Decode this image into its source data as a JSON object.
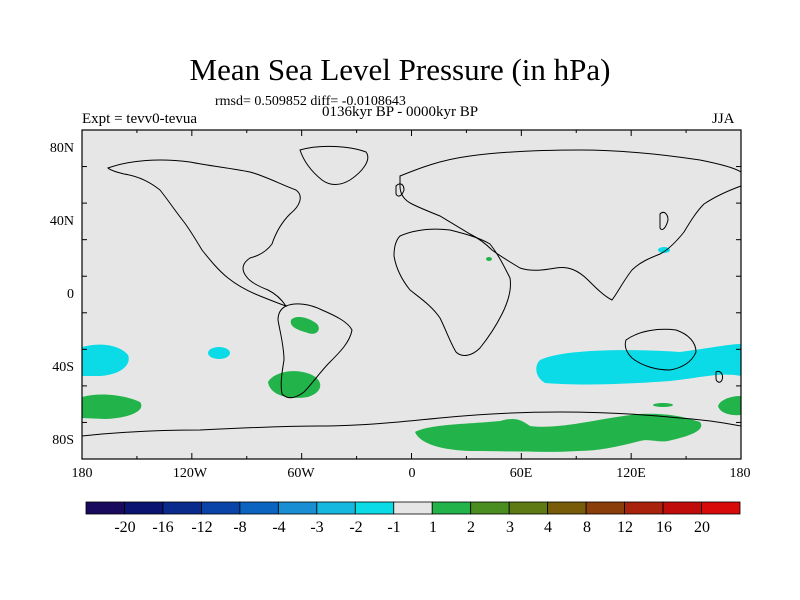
{
  "title": "Mean Sea Level Pressure (in hPa)",
  "stats": "rmsd= 0.509852 diff= -0.0108643",
  "experiment": "Expt = tevv0-tevua",
  "period": "0136kyr BP - 0000kyr BP",
  "season": "JJA",
  "lat_labels": [
    "80N",
    "40N",
    "0",
    "40S",
    "80S"
  ],
  "lon_labels": [
    "180",
    "120W",
    "60W",
    "0",
    "60E",
    "120E",
    "180"
  ],
  "colorbar": {
    "labels": [
      "-20",
      "-16",
      "-12",
      "-8",
      "-4",
      "-3",
      "-2",
      "-1",
      "1",
      "2",
      "3",
      "4",
      "8",
      "12",
      "16",
      "20"
    ],
    "colors": [
      "#1a0a5e",
      "#0c1472",
      "#0a2a8c",
      "#0a44a8",
      "#0a64c0",
      "#1a8ed2",
      "#16b8e0",
      "#0adbe6",
      "#e6e6e6",
      "#22b34a",
      "#4a8e22",
      "#5e7a14",
      "#785c0a",
      "#8a3e0a",
      "#a8220c",
      "#c00c0a",
      "#d80a0a"
    ]
  },
  "colors": {
    "ocean_background": "#e6e6e6",
    "negative_anomaly": "#0adbe6",
    "positive_anomaly": "#22b34a"
  }
}
